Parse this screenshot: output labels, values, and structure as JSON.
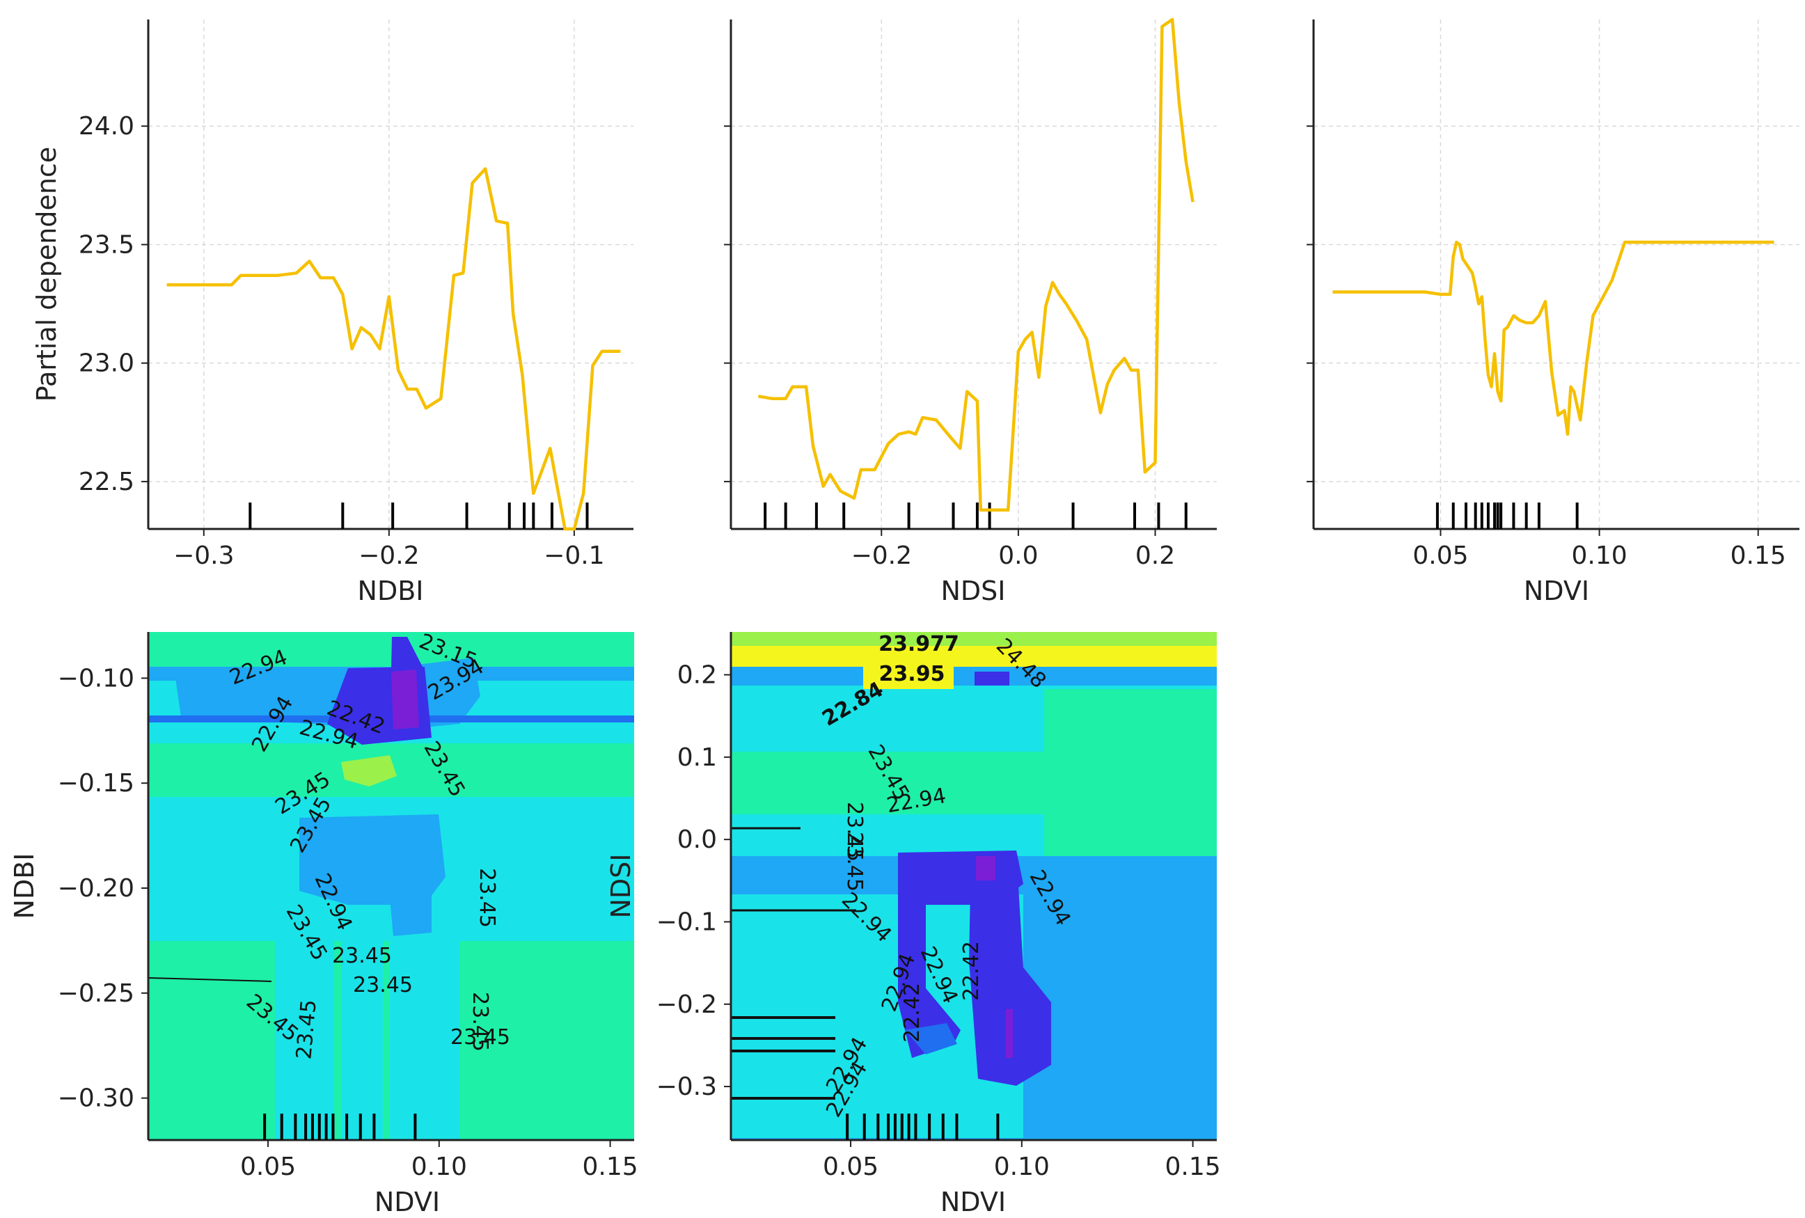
{
  "colors": {
    "line": "#F5C000",
    "grid": "#d9d9d9",
    "rug": "#000000",
    "contour_levels": [
      "#7a1fd6",
      "#3b2fe8",
      "#1f6ff0",
      "#1ea8f5",
      "#19e3e8",
      "#1ef0a8",
      "#9bf04a",
      "#f5f51e"
    ]
  },
  "chart_data": [
    {
      "type": "line",
      "id": "pd_ndbi",
      "xlabel": "NDBI",
      "ylabel": "Partial dependence",
      "xlim": [
        -0.33,
        -0.068
      ],
      "ylim": [
        22.3,
        24.45
      ],
      "xticks": [
        -0.3,
        -0.2,
        -0.1
      ],
      "xtick_labels": [
        "−0.3",
        "−0.2",
        "−0.1"
      ],
      "yticks": [
        22.5,
        23.0,
        23.5,
        24.0
      ],
      "ytick_labels": [
        "22.5",
        "23.0",
        "23.5",
        "24.0"
      ],
      "show_yticklabels": true,
      "x": [
        -0.32,
        -0.3,
        -0.285,
        -0.28,
        -0.27,
        -0.26,
        -0.25,
        -0.243,
        -0.237,
        -0.23,
        -0.225,
        -0.22,
        -0.215,
        -0.21,
        -0.205,
        -0.2,
        -0.195,
        -0.19,
        -0.185,
        -0.18,
        -0.172,
        -0.165,
        -0.16,
        -0.155,
        -0.148,
        -0.142,
        -0.136,
        -0.133,
        -0.128,
        -0.122,
        -0.113,
        -0.105,
        -0.1,
        -0.095,
        -0.09,
        -0.085,
        -0.075
      ],
      "y": [
        23.33,
        23.33,
        23.33,
        23.37,
        23.37,
        23.37,
        23.38,
        23.43,
        23.36,
        23.36,
        23.29,
        23.06,
        23.15,
        23.12,
        23.06,
        23.28,
        22.97,
        22.89,
        22.89,
        22.81,
        22.85,
        23.37,
        23.38,
        23.76,
        23.82,
        23.6,
        23.59,
        23.21,
        22.95,
        22.45,
        22.64,
        22.3,
        22.3,
        22.45,
        22.99,
        23.05,
        23.05
      ],
      "rug": [
        -0.275,
        -0.225,
        -0.198,
        -0.158,
        -0.135,
        -0.127,
        -0.122,
        -0.112,
        -0.093
      ]
    },
    {
      "type": "line",
      "id": "pd_ndsi",
      "xlabel": "NDSI",
      "ylabel": "",
      "xlim": [
        -0.42,
        0.29
      ],
      "ylim": [
        22.3,
        24.45
      ],
      "xticks": [
        -0.2,
        0.0,
        0.2
      ],
      "xtick_labels": [
        "−0.2",
        "0.0",
        "0.2"
      ],
      "yticks": [
        22.5,
        23.0,
        23.5,
        24.0
      ],
      "ytick_labels": [
        "22.5",
        "23.0",
        "23.5",
        "24.0"
      ],
      "show_yticklabels": false,
      "x": [
        -0.38,
        -0.36,
        -0.34,
        -0.33,
        -0.31,
        -0.3,
        -0.285,
        -0.275,
        -0.26,
        -0.24,
        -0.23,
        -0.21,
        -0.19,
        -0.175,
        -0.16,
        -0.15,
        -0.14,
        -0.12,
        -0.1,
        -0.085,
        -0.075,
        -0.06,
        -0.055,
        -0.045,
        -0.035,
        -0.025,
        -0.015,
        0.0,
        0.01,
        0.02,
        0.03,
        0.04,
        0.05,
        0.06,
        0.07,
        0.085,
        0.1,
        0.12,
        0.13,
        0.14,
        0.155,
        0.165,
        0.175,
        0.185,
        0.2,
        0.21,
        0.225,
        0.235,
        0.245,
        0.255
      ],
      "y": [
        22.86,
        22.85,
        22.85,
        22.9,
        22.9,
        22.65,
        22.48,
        22.53,
        22.46,
        22.43,
        22.55,
        22.55,
        22.66,
        22.7,
        22.71,
        22.7,
        22.77,
        22.76,
        22.69,
        22.64,
        22.88,
        22.84,
        22.38,
        22.38,
        22.38,
        22.38,
        22.38,
        23.05,
        23.1,
        23.13,
        22.94,
        23.24,
        23.34,
        23.29,
        23.25,
        23.18,
        23.1,
        22.79,
        22.91,
        22.97,
        23.02,
        22.97,
        22.97,
        22.54,
        22.58,
        24.42,
        24.45,
        24.1,
        23.85,
        23.68
      ],
      "rug": [
        -0.37,
        -0.34,
        -0.295,
        -0.255,
        -0.16,
        -0.095,
        -0.06,
        -0.042,
        0.08,
        0.17,
        0.205,
        0.245
      ]
    },
    {
      "type": "line",
      "id": "pd_ndvi",
      "xlabel": "NDVI",
      "ylabel": "",
      "xlim": [
        0.01,
        0.163
      ],
      "ylim": [
        22.3,
        24.45
      ],
      "xticks": [
        0.05,
        0.1,
        0.15
      ],
      "xtick_labels": [
        "0.05",
        "0.10",
        "0.15"
      ],
      "show_yticklabels": false,
      "yticks": [
        22.5,
        23.0,
        23.5,
        24.0
      ],
      "ytick_labels": [
        "22.5",
        "23.0",
        "23.5",
        "24.0"
      ],
      "x": [
        0.016,
        0.03,
        0.045,
        0.05,
        0.053,
        0.054,
        0.055,
        0.056,
        0.057,
        0.058,
        0.059,
        0.06,
        0.061,
        0.062,
        0.063,
        0.064,
        0.065,
        0.066,
        0.067,
        0.068,
        0.069,
        0.07,
        0.071,
        0.073,
        0.075,
        0.077,
        0.079,
        0.081,
        0.083,
        0.085,
        0.087,
        0.089,
        0.09,
        0.091,
        0.092,
        0.094,
        0.096,
        0.098,
        0.1,
        0.104,
        0.108,
        0.11,
        0.155
      ],
      "y": [
        23.3,
        23.3,
        23.3,
        23.29,
        23.29,
        23.45,
        23.51,
        23.5,
        23.44,
        23.42,
        23.4,
        23.38,
        23.32,
        23.25,
        23.28,
        23.1,
        22.95,
        22.9,
        23.04,
        22.88,
        22.84,
        23.14,
        23.15,
        23.2,
        23.18,
        23.17,
        23.17,
        23.2,
        23.26,
        22.96,
        22.78,
        22.8,
        22.7,
        22.9,
        22.88,
        22.76,
        23.0,
        23.2,
        23.25,
        23.35,
        23.51,
        23.51,
        23.51
      ],
      "rug": [
        0.049,
        0.054,
        0.058,
        0.061,
        0.063,
        0.065,
        0.067,
        0.068,
        0.069,
        0.073,
        0.077,
        0.081,
        0.093
      ]
    },
    {
      "type": "heatmap",
      "id": "pd2_ndvi_ndbi",
      "xlabel": "NDVI",
      "ylabel": "NDBI",
      "xlim": [
        0.015,
        0.157
      ],
      "ylim": [
        -0.32,
        -0.078
      ],
      "xticks": [
        0.05,
        0.1,
        0.15
      ],
      "xtick_labels": [
        "0.05",
        "0.10",
        "0.15"
      ],
      "yticks": [
        -0.3,
        -0.25,
        -0.2,
        -0.15,
        -0.1
      ],
      "ytick_labels": [
        "−0.30",
        "−0.25",
        "−0.20",
        "−0.15",
        "−0.10"
      ],
      "contour_labels": [
        "22.94",
        "23.45",
        "22.42",
        "22.94",
        "22.94",
        "23.45",
        "23.45",
        "22.94",
        "23.45",
        "23.45",
        "23.45",
        "23.45",
        "23.45",
        "23.45",
        "23.45",
        "23.45",
        "23.15",
        "23.94"
      ],
      "rug_x": [
        0.049,
        0.054,
        0.058,
        0.061,
        0.063,
        0.065,
        0.067,
        0.069,
        0.073,
        0.077,
        0.081,
        0.093
      ]
    },
    {
      "type": "heatmap",
      "id": "pd2_ndvi_ndsi",
      "xlabel": "NDVI",
      "ylabel": "NDSI",
      "xlim": [
        0.015,
        0.157
      ],
      "ylim": [
        -0.365,
        0.252
      ],
      "xticks": [
        0.05,
        0.1,
        0.15
      ],
      "xtick_labels": [
        "0.05",
        "0.10",
        "0.15"
      ],
      "yticks": [
        -0.3,
        -0.2,
        -0.1,
        0.0,
        0.1,
        0.2
      ],
      "ytick_labels": [
        "−0.3",
        "−0.2",
        "−0.1",
        "0.0",
        "0.1",
        "0.2"
      ],
      "contour_labels": [
        "23.977",
        "23.95",
        "22.84",
        "23.45",
        "22.94",
        "23.45",
        "23.45",
        "22.94",
        "22.94",
        "22.94",
        "22.42",
        "22.42",
        "22.94",
        "22.94",
        "22.94",
        "24.48"
      ],
      "rug_x": [
        0.049,
        0.054,
        0.058,
        0.061,
        0.063,
        0.065,
        0.067,
        0.069,
        0.073,
        0.077,
        0.081,
        0.093
      ]
    }
  ]
}
